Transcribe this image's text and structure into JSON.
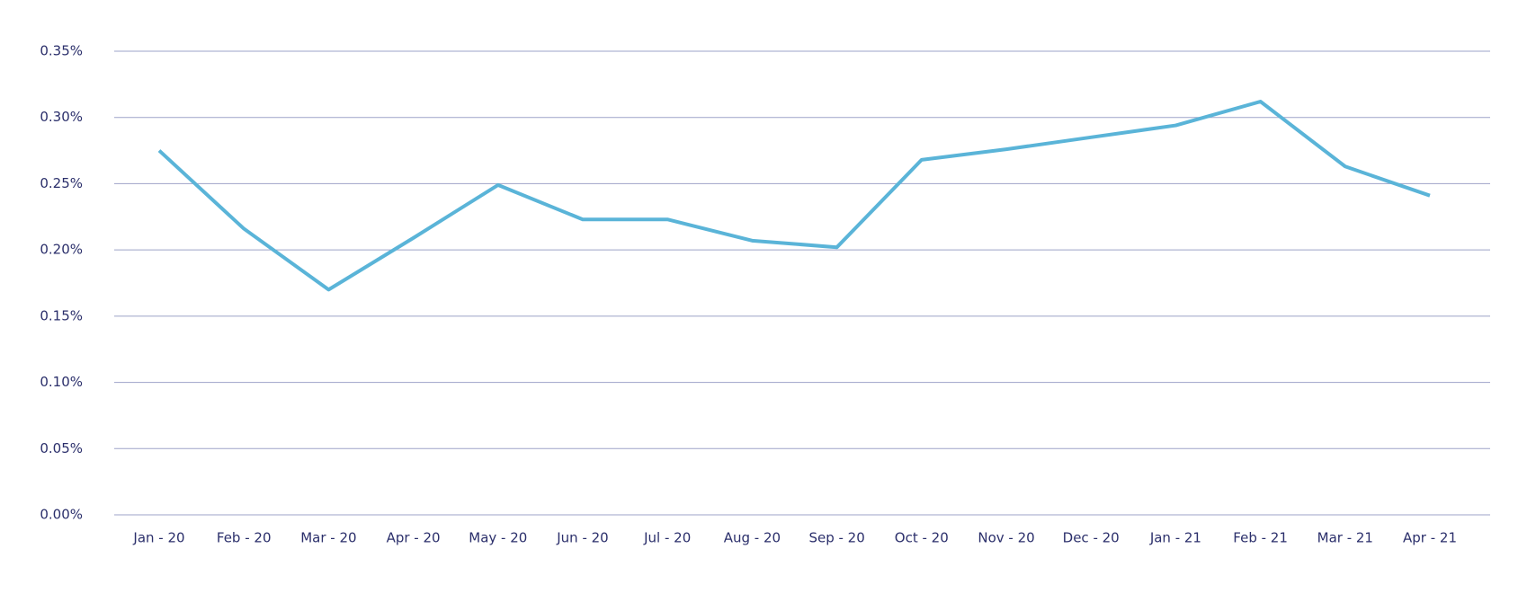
{
  "chart_data": {
    "type": "line",
    "categories": [
      "Jan - 20",
      "Feb - 20",
      "Mar - 20",
      "Apr - 20",
      "May - 20",
      "Jun - 20",
      "Jul - 20",
      "Aug - 20",
      "Sep - 20",
      "Oct - 20",
      "Nov - 20",
      "Dec - 20",
      "Jan - 21",
      "Feb - 21",
      "Mar - 21",
      "Apr - 21"
    ],
    "series": [
      {
        "color": "#5ab4d8",
        "values": [
          0.275,
          0.216,
          0.17,
          0.209,
          0.249,
          0.223,
          0.223,
          0.207,
          0.202,
          0.268,
          0.276,
          0.285,
          0.294,
          0.312,
          0.263,
          0.241
        ]
      }
    ],
    "ylim": [
      0,
      0.35
    ],
    "yticks": [
      {
        "value": 0,
        "label": "0.00%"
      },
      {
        "value": 0.05,
        "label": "0.05%"
      },
      {
        "value": 0.1,
        "label": "0.10%"
      },
      {
        "value": 0.15,
        "label": "0.15%"
      },
      {
        "value": 0.2,
        "label": "0.20%"
      },
      {
        "value": 0.25,
        "label": "0.25%"
      },
      {
        "value": 0.3,
        "label": "0.30%"
      },
      {
        "value": 0.35,
        "label": "0.35%"
      }
    ],
    "grid": true
  }
}
